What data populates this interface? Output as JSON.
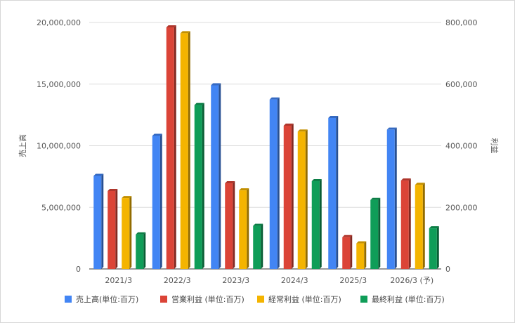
{
  "chart_data": {
    "type": "bar",
    "categories": [
      "2021/3",
      "2022/3",
      "2023/3",
      "2024/3",
      "2025/3",
      "2026/3 (予)"
    ],
    "series": [
      {
        "name": "売上高(単位:百万)",
        "axis": "left",
        "color": "#4285f4",
        "values": [
          7550000,
          10800000,
          14900000,
          13750000,
          12250000,
          11300000
        ]
      },
      {
        "name": "営業利益 (単位:百万)",
        "axis": "right",
        "color": "#db4437",
        "values": [
          253000,
          784000,
          278000,
          465000,
          103000,
          287000
        ]
      },
      {
        "name": "経常利益 (単位:百万)",
        "axis": "right",
        "color": "#f4b400",
        "values": [
          230000,
          765000,
          255000,
          446000,
          83000,
          273000
        ]
      },
      {
        "name": "最終利益 (単位:百万)",
        "axis": "right",
        "color": "#0f9d58",
        "values": [
          112000,
          532000,
          140000,
          285000,
          224000,
          132000
        ]
      }
    ],
    "y_left": {
      "label": "売上高",
      "range": [
        0,
        20000000
      ],
      "ticks": [
        "0",
        "5,000,000",
        "10,000,000",
        "15,000,000",
        "20,000,000"
      ]
    },
    "y_right": {
      "label": "利益",
      "range": [
        0,
        800000
      ],
      "ticks": [
        "0",
        "200,000",
        "400,000",
        "600,000",
        "800,000"
      ]
    },
    "grid": true,
    "legend_position": "bottom"
  }
}
